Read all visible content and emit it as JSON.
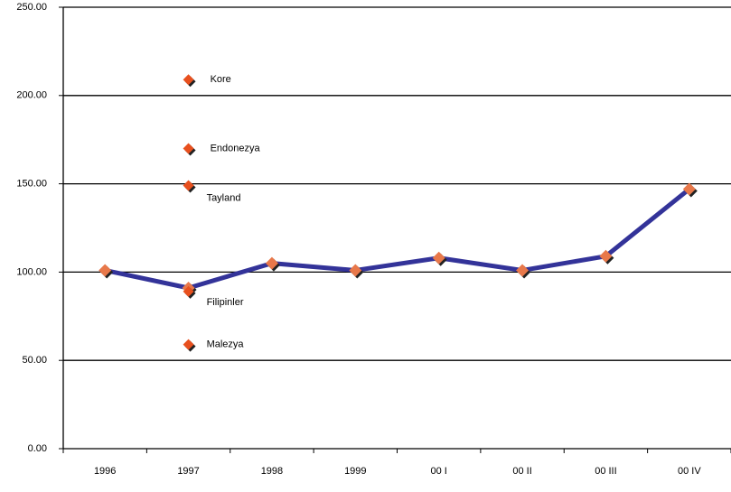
{
  "chart_data": {
    "type": "line",
    "categories": [
      "1996",
      "1997",
      "1998",
      "1999",
      "00 I",
      "00 II",
      "00 III",
      "00 IV"
    ],
    "values": [
      101,
      91,
      105,
      101,
      108,
      101,
      109,
      147
    ],
    "color": "#333399",
    "marker_color": "#e8784a",
    "ylim": [
      0,
      250
    ],
    "yticks": [
      {
        "value": 0,
        "label": "0.00"
      },
      {
        "value": 50,
        "label": "50.00"
      },
      {
        "value": 100,
        "label": "100.00"
      },
      {
        "value": 150,
        "label": "150.00"
      },
      {
        "value": 200,
        "label": "200.00"
      },
      {
        "value": 250,
        "label": "250.00"
      }
    ],
    "grid": true,
    "points": {
      "category": "1997",
      "color": "#e8501e",
      "labels": [
        "Kore",
        "Endonezya",
        "Tayland",
        "Filipinler",
        "Malezya"
      ],
      "values": [
        209,
        170,
        149,
        89,
        59
      ]
    }
  }
}
